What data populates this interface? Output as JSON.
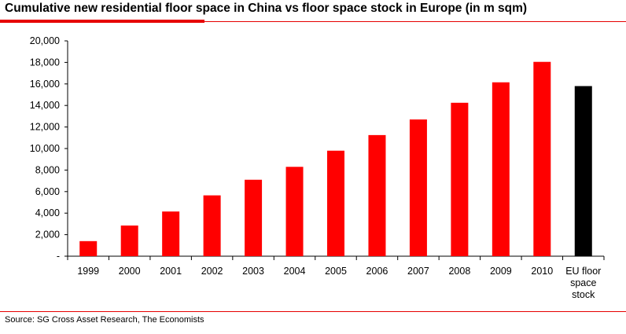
{
  "chart_data": {
    "type": "bar",
    "title": "Cumulative new residential floor space in China vs floor space stock in Europe (in m sqm)",
    "categories": [
      "1999",
      "2000",
      "2001",
      "2002",
      "2003",
      "2004",
      "2005",
      "2006",
      "2007",
      "2008",
      "2009",
      "2010",
      "EU floor space stock"
    ],
    "category_lines": [
      [
        "1999"
      ],
      [
        "2000"
      ],
      [
        "2001"
      ],
      [
        "2002"
      ],
      [
        "2003"
      ],
      [
        "2004"
      ],
      [
        "2005"
      ],
      [
        "2006"
      ],
      [
        "2007"
      ],
      [
        "2008"
      ],
      [
        "2009"
      ],
      [
        "2010"
      ],
      [
        "EU floor",
        "space",
        "stock"
      ]
    ],
    "values": [
      1400,
      2850,
      4150,
      5650,
      7100,
      8300,
      9800,
      11250,
      12700,
      14250,
      16150,
      18050,
      15800
    ],
    "colors": [
      "#ff0000",
      "#ff0000",
      "#ff0000",
      "#ff0000",
      "#ff0000",
      "#ff0000",
      "#ff0000",
      "#ff0000",
      "#ff0000",
      "#ff0000",
      "#ff0000",
      "#ff0000",
      "#000000"
    ],
    "ylim": [
      0,
      20000
    ],
    "yticks": [
      0,
      2000,
      4000,
      6000,
      8000,
      10000,
      12000,
      14000,
      16000,
      18000,
      20000
    ],
    "ytick_labels": [
      "-",
      "2,000",
      "4,000",
      "6,000",
      "8,000",
      "10,000",
      "12,000",
      "14,000",
      "16,000",
      "18,000",
      "20,000"
    ],
    "xlabel": "",
    "ylabel": "",
    "grid": false
  },
  "source": "Source: SG Cross Asset Research, The Economists"
}
